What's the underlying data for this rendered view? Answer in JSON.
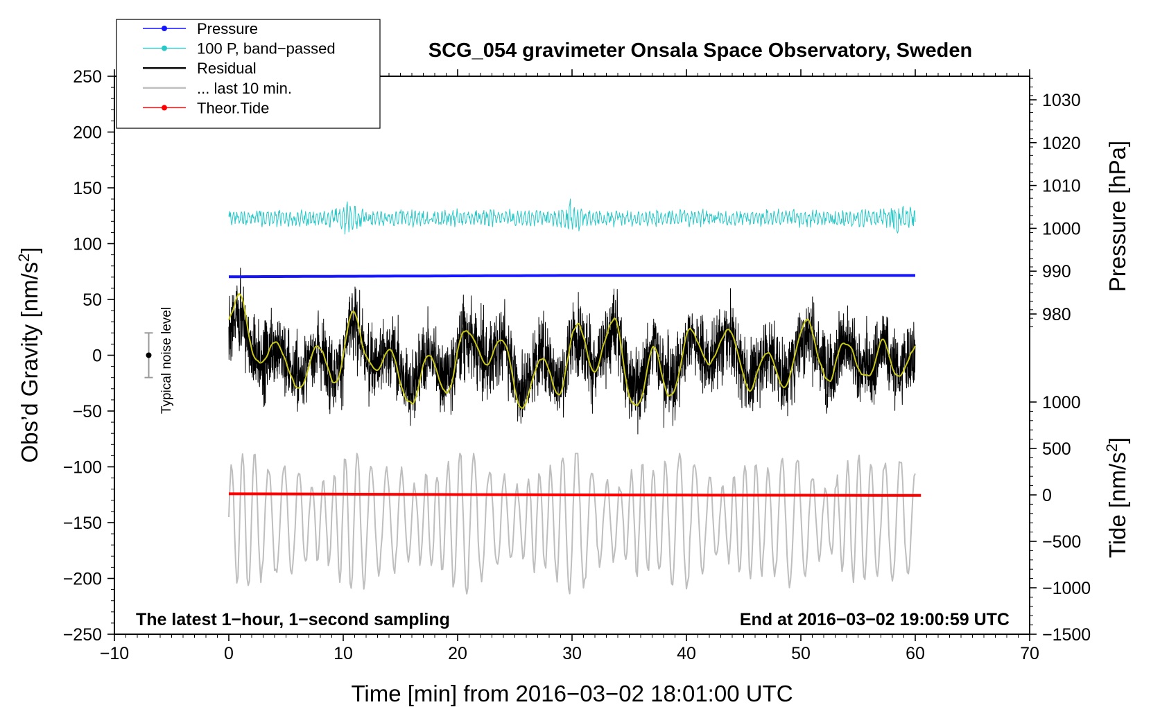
{
  "chart_data": {
    "type": "line",
    "title": "SCG_054 gravimeter Onsala Space Observatory, Sweden",
    "xlabel": "Time [min] from 2016−03−02 18:01:00 UTC",
    "ylabel_left": "Obs’d Gravity [nm/s",
    "ylabel_superscript": "2",
    "ylabel_suffix": "]",
    "ylabel_right_pressure": "Pressure [hPa]",
    "ylabel_right_tide": "Tide [nm/s",
    "xlim": [
      -10,
      70
    ],
    "ylim": [
      -250,
      250
    ],
    "pressure_axis_range": [
      980,
      1030
    ],
    "tide_axis_range": [
      -1500,
      1000
    ],
    "x_ticks": [
      "−10",
      "0",
      "10",
      "20",
      "30",
      "40",
      "50",
      "60",
      "70"
    ],
    "y_ticks": [
      "250",
      "200",
      "150",
      "100",
      "50",
      "0",
      "−50",
      "−100",
      "−150",
      "−200",
      "−250"
    ],
    "pressure_ticks": [
      "1030",
      "1020",
      "1010",
      "1000",
      "990",
      "980"
    ],
    "tide_ticks": [
      "1000",
      "500",
      "0",
      "−500",
      "−1000",
      "−1500"
    ],
    "annotation_left": "The latest 1−hour, 1−second sampling",
    "annotation_right": "End at 2016−03−02 19:00:59 UTC",
    "noise_label": "Typical noise level",
    "noise_bar": {
      "x": -7,
      "y": 0,
      "half_range": 20
    },
    "legend": [
      {
        "label": "Pressure",
        "color": "#1414ff",
        "marker": true
      },
      {
        "label": "100 P, band−passed",
        "color": "#28c8c8",
        "marker": true
      },
      {
        "label": "Residual",
        "color": "#000000",
        "marker": false
      },
      {
        "label": "... last 10 min.",
        "color": "#bebebe",
        "marker": false
      },
      {
        "label": "Theor.Tide",
        "color": "#ff0000",
        "marker": true
      }
    ],
    "series": [
      {
        "name": "Pressure",
        "color": "#1414ff",
        "axis": "pressure",
        "x": [
          0,
          10,
          20,
          30,
          40,
          50,
          60
        ],
        "values": [
          988.7,
          988.8,
          988.9,
          989.0,
          989.0,
          989.0,
          989.0
        ]
      },
      {
        "name": "100 P, band−passed",
        "color": "#28c8c8",
        "axis": "left",
        "center": 123,
        "x": [
          0,
          60
        ],
        "amplitude_range": [
          95,
          147
        ]
      },
      {
        "name": "Residual",
        "color": "#000000",
        "axis": "left",
        "x": [
          0,
          60
        ],
        "value_range": [
          -86,
          93
        ]
      },
      {
        "name": "Residual, smoothed",
        "color": "#c8c814",
        "axis": "left",
        "x": [
          0,
          60
        ],
        "value_range": [
          -53,
          56
        ]
      },
      {
        "name": "... last 10 min.",
        "color": "#bebebe",
        "axis": "left",
        "x": [
          0,
          60
        ],
        "value_range": [
          -220,
          -88
        ]
      },
      {
        "name": "Theor.Tide",
        "color": "#ff0000",
        "axis": "tide",
        "x": [
          0,
          10,
          20,
          30,
          40,
          50,
          60.5
        ],
        "values": [
          12,
          8,
          4,
          0,
          -2,
          -4,
          -6
        ]
      }
    ]
  }
}
